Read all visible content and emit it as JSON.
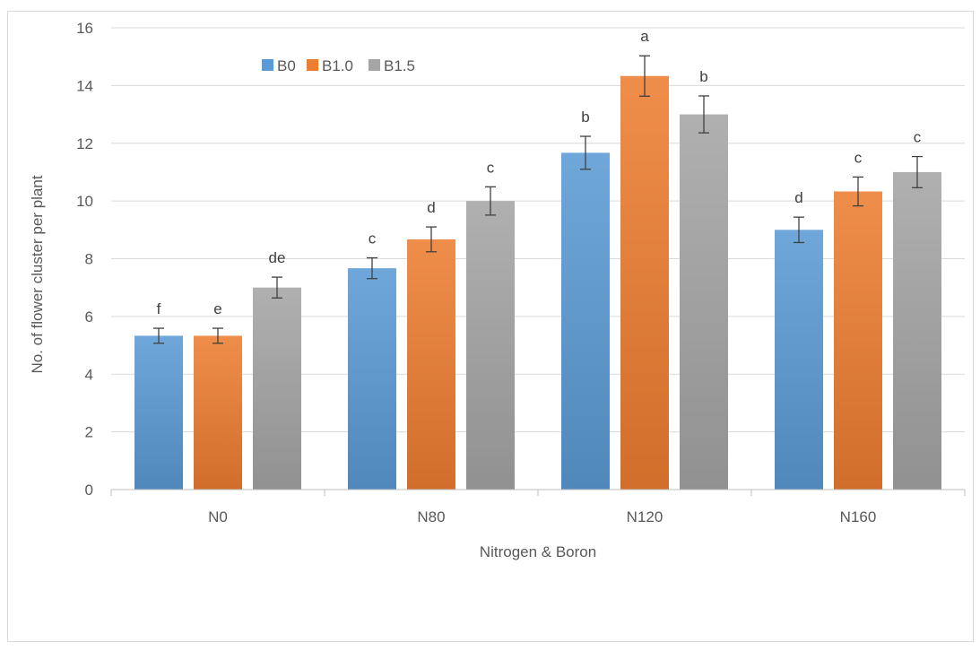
{
  "chart_data": {
    "type": "bar",
    "title": "",
    "xlabel": "Nitrogen & Boron",
    "ylabel": "No. of flower cluster per plant",
    "categories": [
      "N0",
      "N80",
      "N120",
      "N160"
    ],
    "ylim": [
      0,
      16
    ],
    "yticks": [
      0,
      2,
      4,
      6,
      8,
      10,
      12,
      14,
      16
    ],
    "grid": true,
    "legend_position": "top-left",
    "series": [
      {
        "name": "B0",
        "color": "#5b9bd5",
        "values": [
          5.33,
          7.67,
          11.67,
          9.0
        ],
        "errors": [
          0.26,
          0.36,
          0.57,
          0.44
        ],
        "letters": [
          "f",
          "c",
          "b",
          "d"
        ]
      },
      {
        "name": "B1.0",
        "color": "#ed7d31",
        "values": [
          5.33,
          8.67,
          14.33,
          10.33
        ],
        "errors": [
          0.26,
          0.43,
          0.7,
          0.5
        ],
        "letters": [
          "e",
          "d",
          "a",
          "c"
        ]
      },
      {
        "name": "B1.5",
        "color": "#a5a5a5",
        "values": [
          7.0,
          10.0,
          13.0,
          11.0
        ],
        "errors": [
          0.36,
          0.49,
          0.64,
          0.54
        ],
        "letters": [
          "de",
          "c",
          "b",
          "c"
        ]
      }
    ]
  }
}
